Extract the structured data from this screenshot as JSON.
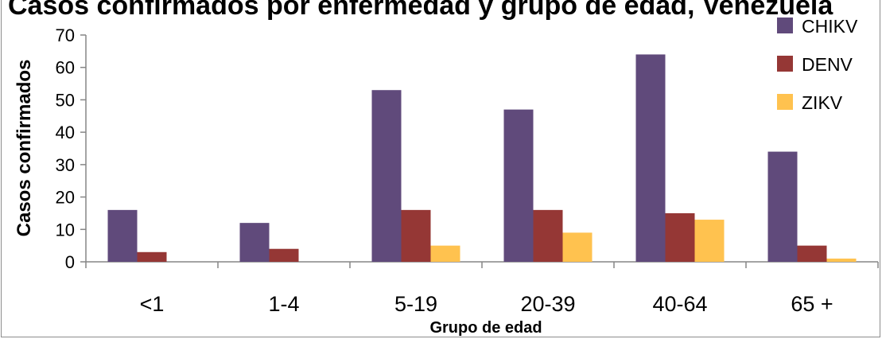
{
  "chart_data": {
    "type": "bar",
    "title": "Casos confirmados por enfermedad y grupo de edad, Venezuela",
    "xlabel": "Grupo de edad",
    "ylabel": "Casos confirmados",
    "categories": [
      "<1",
      "1-4",
      "5-19",
      "20-39",
      "40-64",
      "65 +"
    ],
    "series": [
      {
        "name": "CHIKV",
        "color": "#604a7b",
        "values": [
          16,
          12,
          53,
          47,
          64,
          34
        ]
      },
      {
        "name": "DENV",
        "color": "#953735",
        "values": [
          3,
          4,
          16,
          16,
          15,
          5
        ]
      },
      {
        "name": "ZIKV",
        "color": "#ffc24f",
        "values": [
          0,
          0,
          5,
          9,
          13,
          1
        ]
      }
    ],
    "ylim": [
      0,
      70
    ],
    "yticks": [
      0,
      10,
      20,
      30,
      40,
      50,
      60,
      70
    ],
    "grid": false,
    "legend_position": "top-right"
  }
}
